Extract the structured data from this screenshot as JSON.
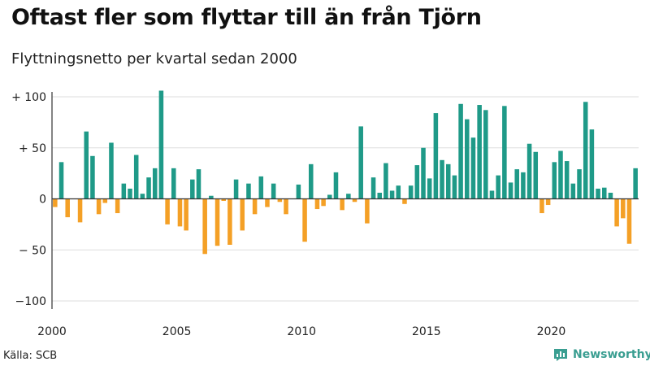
{
  "header": {
    "title": "Oftast fler som flyttar till än från Tjörn",
    "subtitle": "Flyttningsnetto per kvartal sedan 2000"
  },
  "footer": {
    "source": "Källa: SCB",
    "brand": "Newsworthy",
    "brand_icon": "bar-chart-logo-icon"
  },
  "colors": {
    "positive": "#1f9a88",
    "negative": "#f4a026",
    "grid": "#dddddd",
    "axis": "#333333",
    "brand": "#3a9e91"
  },
  "chart_data": {
    "type": "bar",
    "title": "Oftast fler som flyttar till än från Tjörn",
    "subtitle": "Flyttningsnetto per kvartal sedan 2000",
    "xlabel": "",
    "ylabel": "",
    "ylim": [
      -100,
      100
    ],
    "grid": true,
    "yticks": [
      {
        "value": 100,
        "label": "+ 100"
      },
      {
        "value": 50,
        "label": "+ 50"
      },
      {
        "value": 0,
        "label": "0"
      },
      {
        "value": -50,
        "label": "− 50"
      },
      {
        "value": -100,
        "label": "−100"
      }
    ],
    "xticks": [
      {
        "year": 2000,
        "label": "2000"
      },
      {
        "year": 2005,
        "label": "2005"
      },
      {
        "year": 2010,
        "label": "2010"
      },
      {
        "year": 2015,
        "label": "2015"
      },
      {
        "year": 2020,
        "label": "2020"
      }
    ],
    "start_year": 2000,
    "values": [
      -8,
      36,
      -18,
      0,
      -23,
      66,
      42,
      -15,
      -4,
      55,
      -14,
      15,
      10,
      43,
      5,
      21,
      30,
      106,
      -25,
      30,
      -27,
      -31,
      19,
      29,
      -54,
      3,
      -46,
      -2,
      -45,
      19,
      -31,
      15,
      -15,
      22,
      -8,
      15,
      -3,
      -15,
      0,
      14,
      -42,
      34,
      -10,
      -7,
      4,
      26,
      -11,
      5,
      -3,
      71,
      -24,
      21,
      6,
      35,
      8,
      13,
      -5,
      13,
      33,
      50,
      20,
      84,
      38,
      34,
      23,
      93,
      78,
      60,
      92,
      87,
      8,
      23,
      91,
      16,
      29,
      26,
      54,
      46,
      -14,
      -6,
      36,
      47,
      37,
      15,
      29,
      95,
      68,
      10,
      11,
      6,
      -27,
      -19,
      -44,
      30
    ]
  }
}
